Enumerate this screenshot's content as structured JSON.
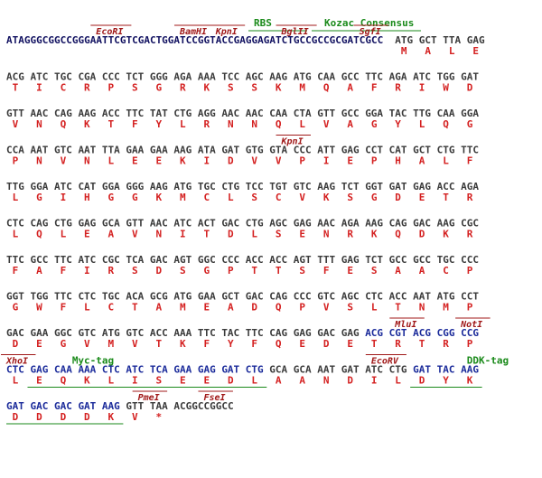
{
  "header": {
    "rbs": "RBS",
    "kozak": "Kozac Consensus"
  },
  "leader": "ATAGGGCGGCCGGGAATTCGTCGACTGGATCCGGTACCGAGGAGATCTGCCGCCGCGATCGCC",
  "rows": [
    {
      "sites": [
        "EcoRI",
        "BamHI",
        "KpnI",
        "BglII",
        "SgfI"
      ],
      "codons": [
        "ATG",
        "GCT",
        "TTA",
        "GAG"
      ],
      "amino_acids": [
        "M",
        "A",
        "L",
        "E"
      ]
    },
    {
      "codons": [
        "ACG",
        "ATC",
        "TGC",
        "CGA",
        "CCC",
        "TCT",
        "GGG",
        "AGA",
        "AAA",
        "TCC",
        "AGC",
        "AAG",
        "ATG",
        "CAA",
        "GCC",
        "TTC",
        "AGA",
        "ATC",
        "TGG",
        "GAT"
      ],
      "amino_acids": [
        "T",
        "I",
        "C",
        "R",
        "P",
        "S",
        "G",
        "R",
        "K",
        "S",
        "S",
        "K",
        "M",
        "Q",
        "A",
        "F",
        "R",
        "I",
        "W",
        "D"
      ]
    },
    {
      "codons": [
        "GTT",
        "AAC",
        "CAG",
        "AAG",
        "ACC",
        "TTC",
        "TAT",
        "CTG",
        "AGG",
        "AAC",
        "AAC",
        "CAA",
        "CTA",
        "GTT",
        "GCC",
        "GGA",
        "TAC",
        "TTG",
        "CAA",
        "GGA"
      ],
      "amino_acids": [
        "V",
        "N",
        "Q",
        "K",
        "T",
        "F",
        "Y",
        "L",
        "R",
        "N",
        "N",
        "Q",
        "L",
        "V",
        "A",
        "G",
        "Y",
        "L",
        "Q",
        "G"
      ]
    },
    {
      "sites": [
        "KpnI"
      ],
      "codons": [
        "CCA",
        "AAT",
        "GTC",
        "AAT",
        "TTA",
        "GAA",
        "GAA",
        "AAG",
        "ATA",
        "GAT",
        "GTG",
        "GTA",
        "CCC",
        "ATT",
        "GAG",
        "CCT",
        "CAT",
        "GCT",
        "CTG",
        "TTC"
      ],
      "amino_acids": [
        "P",
        "N",
        "V",
        "N",
        "L",
        "E",
        "E",
        "K",
        "I",
        "D",
        "V",
        "V",
        "P",
        "I",
        "E",
        "P",
        "H",
        "A",
        "L",
        "F"
      ]
    },
    {
      "codons": [
        "TTG",
        "GGA",
        "ATC",
        "CAT",
        "GGA",
        "GGG",
        "AAG",
        "ATG",
        "TGC",
        "CTG",
        "TCC",
        "TGT",
        "GTC",
        "AAG",
        "TCT",
        "GGT",
        "GAT",
        "GAG",
        "ACC",
        "AGA"
      ],
      "amino_acids": [
        "L",
        "G",
        "I",
        "H",
        "G",
        "G",
        "K",
        "M",
        "C",
        "L",
        "S",
        "C",
        "V",
        "K",
        "S",
        "G",
        "D",
        "E",
        "T",
        "R"
      ]
    },
    {
      "codons": [
        "CTC",
        "CAG",
        "CTG",
        "GAG",
        "GCA",
        "GTT",
        "AAC",
        "ATC",
        "ACT",
        "GAC",
        "CTG",
        "AGC",
        "GAG",
        "AAC",
        "AGA",
        "AAG",
        "CAG",
        "GAC",
        "AAG",
        "CGC"
      ],
      "amino_acids": [
        "L",
        "Q",
        "L",
        "E",
        "A",
        "V",
        "N",
        "I",
        "T",
        "D",
        "L",
        "S",
        "E",
        "N",
        "R",
        "K",
        "Q",
        "D",
        "K",
        "R"
      ]
    },
    {
      "codons": [
        "TTC",
        "GCC",
        "TTC",
        "ATC",
        "CGC",
        "TCA",
        "GAC",
        "AGT",
        "GGC",
        "CCC",
        "ACC",
        "ACC",
        "AGT",
        "TTT",
        "GAG",
        "TCT",
        "GCC",
        "GCC",
        "TGC",
        "CCC"
      ],
      "amino_acids": [
        "F",
        "A",
        "F",
        "I",
        "R",
        "S",
        "D",
        "S",
        "G",
        "P",
        "T",
        "T",
        "S",
        "F",
        "E",
        "S",
        "A",
        "A",
        "C",
        "P"
      ]
    },
    {
      "codons": [
        "GGT",
        "TGG",
        "TTC",
        "CTC",
        "TGC",
        "ACA",
        "GCG",
        "ATG",
        "GAA",
        "GCT",
        "GAC",
        "CAG",
        "CCC",
        "GTC",
        "AGC",
        "CTC",
        "ACC",
        "AAT",
        "ATG",
        "CCT"
      ],
      "amino_acids": [
        "G",
        "W",
        "F",
        "L",
        "C",
        "T",
        "A",
        "M",
        "E",
        "A",
        "D",
        "Q",
        "P",
        "V",
        "S",
        "L",
        "T",
        "N",
        "M",
        "P"
      ]
    },
    {
      "sites": [
        "MluI",
        "NotI"
      ],
      "codons": [
        "GAC",
        "GAA",
        "GGC",
        "GTC",
        "ATG",
        "GTC",
        "ACC",
        "AAA",
        "TTC",
        "TAC",
        "TTC",
        "CAG",
        "GAG",
        "GAC",
        "GAG",
        "ACG",
        "CGT",
        "ACG",
        "CGG",
        "CCG"
      ],
      "amino_acids": [
        "D",
        "E",
        "G",
        "V",
        "M",
        "V",
        "T",
        "K",
        "F",
        "Y",
        "F",
        "Q",
        "E",
        "D",
        "E",
        "T",
        "R",
        "T",
        "R",
        "P"
      ]
    },
    {
      "sites": [
        "XhoI",
        "EcoRV"
      ],
      "tags": [
        "Myc-tag",
        "DDK-tag"
      ],
      "codons": [
        "CTC",
        "GAG",
        "CAA",
        "AAA",
        "CTC",
        "ATC",
        "TCA",
        "GAA",
        "GAG",
        "GAT",
        "CTG",
        "GCA",
        "GCA",
        "AAT",
        "GAT",
        "ATC",
        "CTG",
        "GAT",
        "TAC",
        "AAG"
      ],
      "amino_acids": [
        "L",
        "E",
        "Q",
        "K",
        "L",
        "I",
        "S",
        "E",
        "E",
        "D",
        "L",
        "A",
        "A",
        "N",
        "D",
        "I",
        "L",
        "D",
        "Y",
        "K"
      ]
    },
    {
      "sites": [
        "PmeI",
        "FseI"
      ],
      "codons": [
        "GAT",
        "GAC",
        "GAC",
        "GAT",
        "AAG",
        "GTT",
        "TAA"
      ],
      "amino_acids": [
        "D",
        "D",
        "D",
        "D",
        "K",
        "V",
        "*"
      ],
      "tail": "ACGGCCGGCC"
    }
  ]
}
